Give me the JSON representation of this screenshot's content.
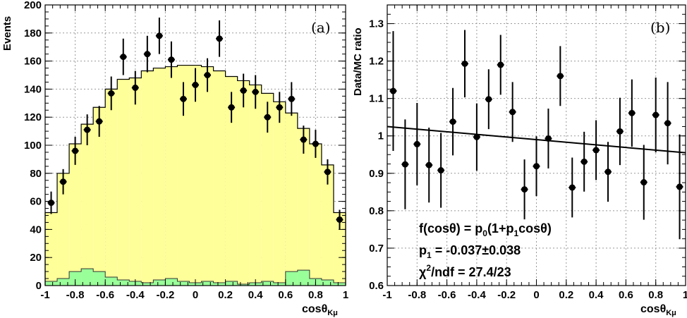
{
  "chart_data": [
    {
      "type": "bar",
      "panel_label": "(a)",
      "ylabel": "Events",
      "xlabel": "cosθ",
      "xlabel_sub": "Kμ",
      "xlim": [
        -1,
        1
      ],
      "ylim": [
        0,
        200
      ],
      "grid": true,
      "x_ticks": [
        "-1",
        "-0.8",
        "-0.6",
        "-0.4",
        "-0.2",
        "0",
        "0.2",
        "0.4",
        "0.6",
        "0.8",
        "1"
      ],
      "y_ticks": [
        "0",
        "20",
        "40",
        "60",
        "80",
        "100",
        "120",
        "140",
        "160",
        "180",
        "200"
      ],
      "bin_edges": [
        -1.0,
        -0.92,
        -0.84,
        -0.76,
        -0.68,
        -0.6,
        -0.52,
        -0.44,
        -0.36,
        -0.28,
        -0.2,
        -0.12,
        -0.04,
        0.04,
        0.12,
        0.2,
        0.28,
        0.36,
        0.44,
        0.52,
        0.6,
        0.68,
        0.76,
        0.84,
        0.92,
        1.0
      ],
      "colors": {
        "mc": "#ffff99",
        "background": "#99ff99",
        "outline": "#000000",
        "points": "#000000"
      },
      "mc_values": [
        52,
        80,
        101,
        115,
        127,
        140,
        147,
        148,
        153,
        155,
        156,
        157,
        157,
        156,
        153,
        149,
        146,
        143,
        137,
        131,
        123,
        112,
        101,
        86,
        52
      ],
      "background_values": [
        3,
        5,
        10,
        12,
        10,
        6,
        4,
        3,
        2,
        4,
        5,
        3,
        2,
        3,
        2,
        3,
        1,
        2,
        3,
        2,
        10,
        11,
        5,
        4,
        2
      ],
      "data_points": {
        "x": [
          -0.96,
          -0.88,
          -0.8,
          -0.72,
          -0.64,
          -0.56,
          -0.48,
          -0.4,
          -0.32,
          -0.24,
          -0.16,
          -0.08,
          0.0,
          0.08,
          0.16,
          0.24,
          0.32,
          0.4,
          0.48,
          0.56,
          0.64,
          0.72,
          0.8,
          0.88,
          0.96
        ],
        "y": [
          59,
          74,
          96,
          111,
          117,
          137,
          163,
          141,
          165,
          178,
          161,
          133,
          143,
          150,
          176,
          127,
          139,
          138,
          120,
          127,
          133,
          104,
          101,
          81,
          47
        ],
        "yerr": [
          8,
          9,
          10,
          11,
          11,
          12,
          13,
          12,
          13,
          13,
          13,
          12,
          12,
          12,
          13,
          11,
          12,
          12,
          11,
          11,
          12,
          10,
          10,
          9,
          7
        ]
      }
    },
    {
      "type": "scatter",
      "panel_label": "(b)",
      "ylabel": "Data/MC ratio",
      "xlabel": "cosθ",
      "xlabel_sub": "Kμ",
      "xlim": [
        -1,
        1
      ],
      "ylim": [
        0.6,
        1.35
      ],
      "grid": true,
      "x_ticks": [
        "-1",
        "-0.8",
        "-0.6",
        "-0.4",
        "-0.2",
        "0",
        "0.2",
        "0.4",
        "0.6",
        "0.8",
        "1"
      ],
      "y_ticks": [
        "0.6",
        "0.7",
        "0.8",
        "0.9",
        "1",
        "1.1",
        "1.2",
        "1.3"
      ],
      "data_points": {
        "x": [
          -0.96,
          -0.88,
          -0.8,
          -0.72,
          -0.64,
          -0.56,
          -0.48,
          -0.4,
          -0.32,
          -0.24,
          -0.16,
          -0.08,
          0.0,
          0.08,
          0.16,
          0.24,
          0.32,
          0.4,
          0.48,
          0.56,
          0.64,
          0.72,
          0.8,
          0.88,
          0.96
        ],
        "y": [
          1.12,
          0.924,
          0.978,
          0.922,
          0.908,
          1.038,
          1.193,
          0.997,
          1.098,
          1.19,
          1.064,
          0.857,
          0.919,
          0.993,
          1.16,
          0.862,
          0.931,
          0.962,
          0.904,
          1.012,
          1.061,
          0.876,
          1.056,
          1.034,
          0.864
        ],
        "yerr": [
          0.16,
          0.12,
          0.11,
          0.1,
          0.1,
          0.09,
          0.09,
          0.09,
          0.08,
          0.08,
          0.08,
          0.08,
          0.08,
          0.08,
          0.08,
          0.08,
          0.08,
          0.08,
          0.08,
          0.09,
          0.09,
          0.1,
          0.1,
          0.11,
          0.14
        ]
      },
      "fit_line": {
        "x": [
          -1,
          1
        ],
        "y": [
          1.025,
          0.955
        ]
      },
      "annotation": {
        "formula_a": "f(cosθ) = p",
        "formula_s1": "0",
        "formula_b": "(1+p",
        "formula_s2": "1",
        "formula_c": "cosθ)",
        "p1_label": "p",
        "p1_sub": "1",
        "p1_value": " = -0.037±0.038",
        "chi2_label": "χ",
        "chi2_sup": "2",
        "chi2_value": "/ndf = 27.4/23"
      }
    }
  ]
}
